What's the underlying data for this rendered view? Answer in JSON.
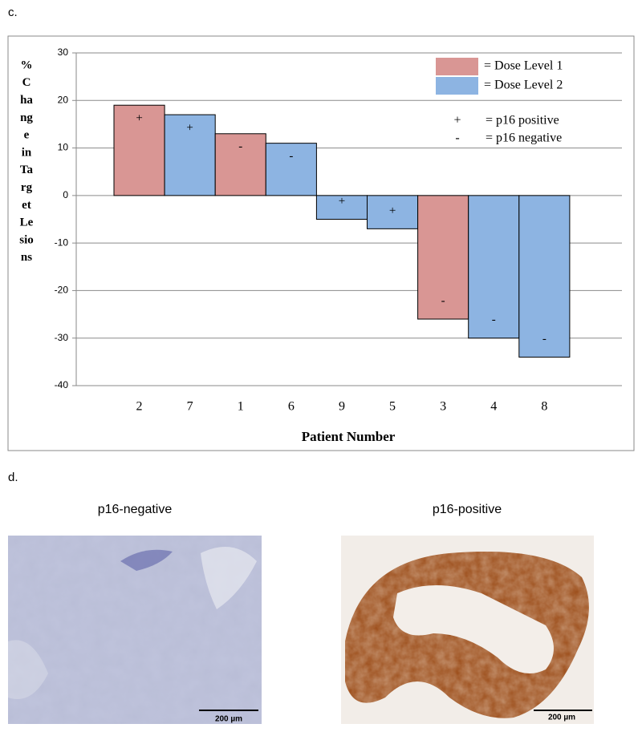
{
  "panel_c_label": "c.",
  "panel_d_label": "d.",
  "chart_data": {
    "type": "bar",
    "categories": [
      "2",
      "7",
      "1",
      "6",
      "9",
      "5",
      "3",
      "4",
      "8"
    ],
    "series": [
      {
        "name": "= Dose Level 1",
        "color": "#d99694",
        "values": [
          19,
          null,
          13,
          null,
          null,
          null,
          -26,
          null,
          null
        ]
      },
      {
        "name": "= Dose Level 2",
        "color": "#8db4e2",
        "values": [
          null,
          17,
          null,
          11,
          -5,
          -7,
          null,
          -30,
          -34
        ]
      }
    ],
    "p16_labels": [
      "+",
      "+",
      "-",
      "-",
      "+",
      "+",
      "-",
      "-",
      "-"
    ],
    "p16_legend": [
      {
        "symbol": "+",
        "label": "= p16 positive"
      },
      {
        "symbol": "-",
        "label": "= p16 negative"
      }
    ],
    "ylabel_lines": [
      "%",
      "C",
      "ha",
      "ng",
      "e",
      "in",
      "Ta",
      "rg",
      "et",
      "Le",
      "sio",
      "ns"
    ],
    "xlabel": "Patient Number",
    "ylim": [
      -40,
      30
    ],
    "yticks": [
      -40,
      -30,
      -20,
      -10,
      0,
      10,
      20,
      30
    ],
    "grid": true
  },
  "images": [
    {
      "title": "p16-negative",
      "scale_bar": "200 µm"
    },
    {
      "title": "p16-positive",
      "scale_bar": "200 µm"
    }
  ]
}
